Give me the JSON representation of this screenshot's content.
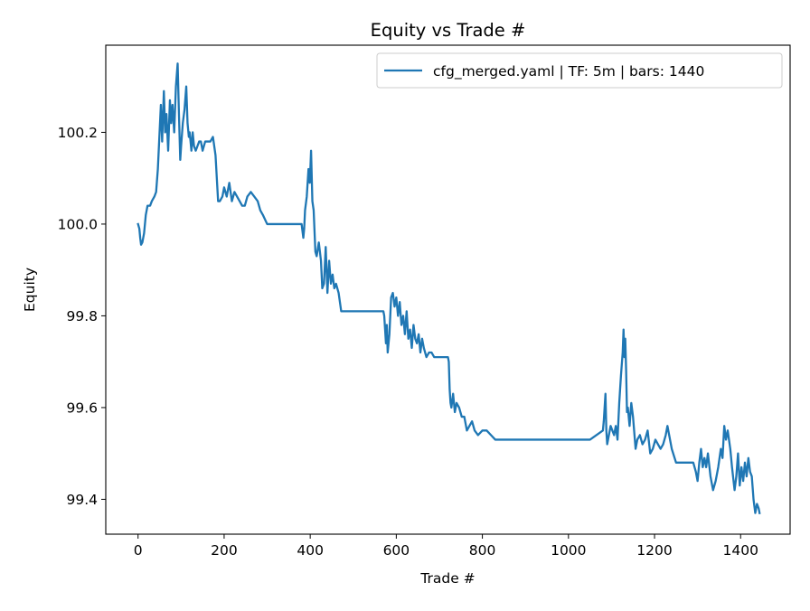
{
  "chart_data": {
    "type": "line",
    "title": "Equity vs Trade #",
    "xlabel": "Trade #",
    "ylabel": "Equity",
    "xlim": [
      -75,
      1515
    ],
    "ylim": [
      99.324,
      100.39
    ],
    "xticks": [
      0,
      200,
      400,
      600,
      800,
      1000,
      1200,
      1400
    ],
    "xtick_labels": [
      "0",
      "200",
      "400",
      "600",
      "800",
      "1000",
      "1200",
      "1400"
    ],
    "yticks": [
      99.4,
      99.6,
      99.8,
      100.0,
      100.2
    ],
    "ytick_labels": [
      "99.4",
      "99.6",
      "99.8",
      "100.0",
      "100.2"
    ],
    "grid": false,
    "legend_position": "upper right",
    "series": [
      {
        "name": "cfg_merged.yaml | TF: 5m | bars: 1440",
        "color": "#1f77b4",
        "x": [
          0,
          3,
          5,
          7,
          10,
          14,
          18,
          22,
          28,
          32,
          38,
          42,
          46,
          50,
          53,
          56,
          60,
          63,
          66,
          70,
          74,
          77,
          80,
          84,
          88,
          92,
          95,
          98,
          100,
          104,
          108,
          112,
          115,
          118,
          120,
          124,
          127,
          130,
          134,
          138,
          142,
          146,
          150,
          156,
          162,
          168,
          174,
          180,
          186,
          190,
          196,
          200,
          206,
          212,
          218,
          224,
          230,
          236,
          242,
          248,
          254,
          262,
          270,
          278,
          284,
          290,
          300,
          320,
          340,
          360,
          380,
          384,
          386,
          388,
          392,
          396,
          399,
          402,
          405,
          408,
          412,
          415,
          420,
          425,
          428,
          432,
          436,
          440,
          444,
          448,
          452,
          456,
          460,
          466,
          472,
          480,
          500,
          540,
          570,
          572,
          574,
          576,
          578,
          580,
          584,
          588,
          592,
          596,
          600,
          604,
          608,
          612,
          616,
          620,
          624,
          628,
          632,
          636,
          640,
          644,
          648,
          652,
          656,
          660,
          664,
          670,
          676,
          682,
          688,
          694,
          700,
          710,
          720,
          722,
          724,
          726,
          728,
          732,
          736,
          740,
          746,
          752,
          758,
          764,
          770,
          776,
          782,
          790,
          800,
          810,
          820,
          830,
          840,
          850,
          900,
          1000,
          1050,
          1080,
          1082,
          1084,
          1086,
          1088,
          1090,
          1094,
          1098,
          1102,
          1106,
          1110,
          1114,
          1118,
          1122,
          1126,
          1128,
          1130,
          1132,
          1134,
          1136,
          1138,
          1142,
          1146,
          1150,
          1156,
          1160,
          1166,
          1172,
          1178,
          1184,
          1190,
          1196,
          1202,
          1208,
          1214,
          1220,
          1226,
          1230,
          1236,
          1240,
          1250,
          1270,
          1290,
          1296,
          1300,
          1304,
          1308,
          1312,
          1316,
          1320,
          1324,
          1330,
          1336,
          1342,
          1348,
          1354,
          1358,
          1362,
          1366,
          1370,
          1376,
          1380,
          1386,
          1390,
          1394,
          1398,
          1402,
          1406,
          1410,
          1414,
          1418,
          1422,
          1426,
          1430,
          1434,
          1438,
          1442,
          1444
        ],
        "values": [
          100.0,
          99.99,
          99.97,
          99.955,
          99.96,
          99.98,
          100.02,
          100.04,
          100.04,
          100.05,
          100.06,
          100.07,
          100.12,
          100.2,
          100.26,
          100.18,
          100.29,
          100.2,
          100.24,
          100.16,
          100.27,
          100.22,
          100.26,
          100.2,
          100.3,
          100.35,
          100.24,
          100.14,
          100.17,
          100.22,
          100.25,
          100.3,
          100.22,
          100.19,
          100.2,
          100.16,
          100.2,
          100.17,
          100.16,
          100.17,
          100.18,
          100.18,
          100.16,
          100.18,
          100.18,
          100.18,
          100.19,
          100.15,
          100.05,
          100.05,
          100.06,
          100.08,
          100.06,
          100.09,
          100.05,
          100.07,
          100.06,
          100.05,
          100.04,
          100.04,
          100.06,
          100.07,
          100.06,
          100.05,
          100.03,
          100.02,
          100.0,
          100.0,
          100.0,
          100.0,
          100.0,
          99.97,
          99.99,
          100.03,
          100.06,
          100.12,
          100.09,
          100.16,
          100.05,
          100.03,
          99.94,
          99.93,
          99.96,
          99.92,
          99.86,
          99.87,
          99.95,
          99.85,
          99.92,
          99.87,
          99.89,
          99.86,
          99.87,
          99.85,
          99.81,
          99.81,
          99.81,
          99.81,
          99.81,
          99.8,
          99.77,
          99.74,
          99.78,
          99.72,
          99.76,
          99.84,
          99.85,
          99.82,
          99.84,
          99.8,
          99.83,
          99.78,
          99.8,
          99.76,
          99.81,
          99.75,
          99.77,
          99.73,
          99.78,
          99.75,
          99.74,
          99.76,
          99.72,
          99.75,
          99.73,
          99.71,
          99.72,
          99.72,
          99.71,
          99.71,
          99.71,
          99.71,
          99.71,
          99.7,
          99.64,
          99.61,
          99.6,
          99.63,
          99.59,
          99.61,
          99.6,
          99.58,
          99.58,
          99.55,
          99.56,
          99.57,
          99.55,
          99.54,
          99.55,
          99.55,
          99.54,
          99.53,
          99.53,
          99.53,
          99.53,
          99.53,
          99.53,
          99.55,
          99.57,
          99.6,
          99.63,
          99.55,
          99.52,
          99.54,
          99.56,
          99.55,
          99.54,
          99.56,
          99.53,
          99.61,
          99.67,
          99.72,
          99.77,
          99.71,
          99.75,
          99.68,
          99.59,
          99.6,
          99.56,
          99.61,
          99.58,
          99.51,
          99.53,
          99.54,
          99.52,
          99.53,
          99.55,
          99.5,
          99.51,
          99.53,
          99.52,
          99.51,
          99.52,
          99.54,
          99.56,
          99.53,
          99.51,
          99.48,
          99.48,
          99.48,
          99.46,
          99.44,
          99.48,
          99.51,
          99.47,
          99.49,
          99.47,
          99.5,
          99.45,
          99.42,
          99.44,
          99.47,
          99.51,
          99.49,
          99.56,
          99.53,
          99.55,
          99.51,
          99.47,
          99.42,
          99.45,
          99.5,
          99.43,
          99.47,
          99.44,
          99.48,
          99.45,
          99.49,
          99.46,
          99.45,
          99.4,
          99.37,
          99.39,
          99.38,
          99.37
        ]
      }
    ]
  }
}
